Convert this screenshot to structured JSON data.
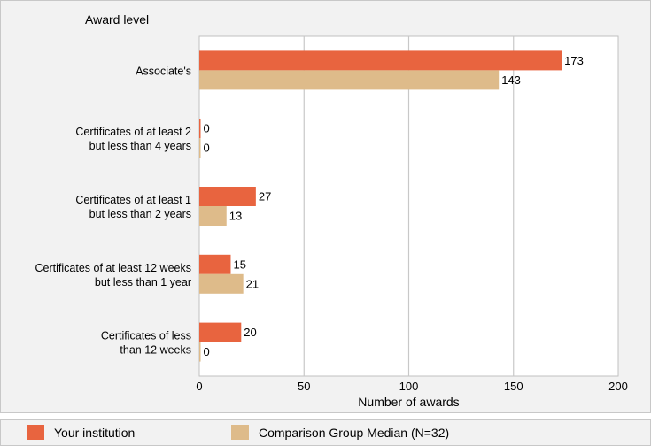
{
  "chart_data": {
    "type": "bar",
    "orientation": "horizontal",
    "title": "Award level",
    "xlabel": "Number of awards",
    "xlim": [
      0,
      200
    ],
    "xticks": [
      0,
      50,
      100,
      150,
      200
    ],
    "grid": true,
    "legend_position": "bottom",
    "categories": [
      [
        "Associate's"
      ],
      [
        "Certificates of at least 2",
        "but less than 4 years"
      ],
      [
        "Certificates of at least 1",
        "but  less than 2 years"
      ],
      [
        "Certificates of at least 12 weeks",
        "but less than 1 year"
      ],
      [
        "Certificates of less",
        "than 12 weeks"
      ]
    ],
    "series": [
      {
        "name": "Your institution",
        "color": "#e8643f",
        "values": [
          173,
          0,
          27,
          15,
          20
        ]
      },
      {
        "name": "Comparison Group Median (N=32)",
        "color": "#debb8a",
        "values": [
          143,
          0,
          13,
          21,
          0
        ]
      }
    ]
  }
}
